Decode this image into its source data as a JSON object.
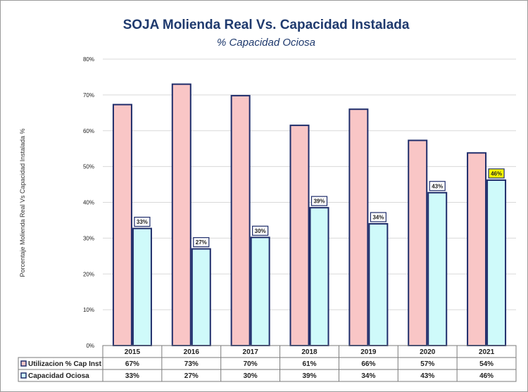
{
  "chart_data": {
    "type": "bar",
    "title": "SOJA Molienda Real Vs. Capacidad Instalada",
    "subtitle": "% Capacidad Ociosa",
    "ylabel": "Porcentaje Molienda Real Vs Capacidad Instalada %",
    "xlabel": "",
    "categories": [
      "2015",
      "2016",
      "2017",
      "2018",
      "2019",
      "2020",
      "2021"
    ],
    "ylim": [
      0,
      80
    ],
    "yticks": [
      "0%",
      "10%",
      "20%",
      "30%",
      "40%",
      "50%",
      "60%",
      "70%",
      "80%"
    ],
    "grid": true,
    "legend_placement": "data table below chart",
    "series": [
      {
        "name": "Utilizacion % Cap Inst",
        "values": [
          67.3,
          73.0,
          69.8,
          61.5,
          66.0,
          57.3,
          53.8
        ],
        "table_labels": [
          "67%",
          "73%",
          "70%",
          "61%",
          "66%",
          "57%",
          "54%"
        ],
        "color": "#f9c6c6",
        "border": "#1f2d6b"
      },
      {
        "name": "Capacidad Ociosa",
        "values": [
          32.7,
          27.0,
          30.2,
          38.5,
          34.0,
          42.7,
          46.2
        ],
        "table_labels": [
          "33%",
          "27%",
          "30%",
          "39%",
          "34%",
          "43%",
          "46%"
        ],
        "data_labels": [
          "33%",
          "27%",
          "30%",
          "39%",
          "34%",
          "43%",
          "46%"
        ],
        "color": "#cffafa",
        "border": "#1f2d6b"
      }
    ],
    "highlight": {
      "category": "2021",
      "color": "#ffff00"
    }
  }
}
